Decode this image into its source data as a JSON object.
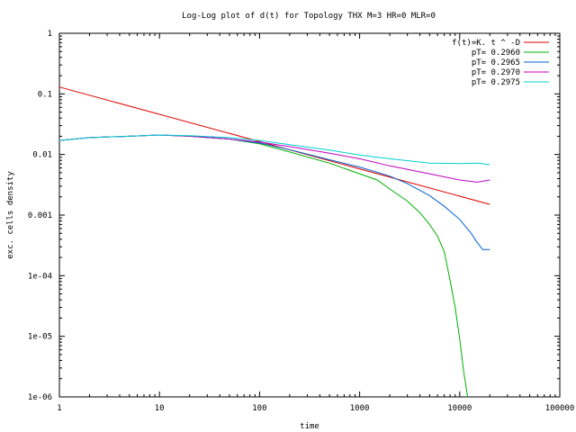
{
  "chart_data": {
    "type": "line",
    "title": "Log-Log plot of d(t) for Topology THX M=3 HR=0 MLR=0",
    "xlabel": "time",
    "ylabel": "exc. cells density",
    "x_scale": "log",
    "y_scale": "log",
    "xlim": [
      1,
      100000
    ],
    "ylim": [
      1e-06,
      1
    ],
    "x_ticks": [
      {
        "value": 1,
        "label": "1"
      },
      {
        "value": 10,
        "label": "10"
      },
      {
        "value": 100,
        "label": "100"
      },
      {
        "value": 1000,
        "label": "1000"
      },
      {
        "value": 10000,
        "label": "10000"
      },
      {
        "value": 100000,
        "label": "100000"
      }
    ],
    "y_ticks": [
      {
        "value": 1,
        "label": "1"
      },
      {
        "value": 0.1,
        "label": "0.1"
      },
      {
        "value": 0.01,
        "label": "0.01"
      },
      {
        "value": 0.001,
        "label": "0.001"
      },
      {
        "value": 0.0001,
        "label": "1e-04"
      },
      {
        "value": 1e-05,
        "label": "1e-05"
      },
      {
        "value": 1e-06,
        "label": "1e-06"
      }
    ],
    "grid": false,
    "legend_position": "top-right",
    "series": [
      {
        "name": "f(t)=K. t ^ -D",
        "color": "#e00000",
        "x": [
          1,
          20000
        ],
        "y": [
          0.13,
          0.0015
        ]
      },
      {
        "name": "pT= 0.2960",
        "color": "#00b000",
        "x": [
          1,
          2,
          5,
          10,
          20,
          50,
          100,
          200,
          500,
          1000,
          1500,
          2000,
          3000,
          4000,
          5000,
          6000,
          7000,
          8000,
          9000,
          10000,
          11000,
          12000
        ],
        "y": [
          0.017,
          0.019,
          0.02,
          0.021,
          0.02,
          0.018,
          0.015,
          0.011,
          0.0072,
          0.0048,
          0.0038,
          0.0027,
          0.0017,
          0.0011,
          0.0007,
          0.00045,
          0.00025,
          8.5e-05,
          3e-05,
          9e-06,
          2.5e-06,
          1e-06
        ]
      },
      {
        "name": "pT= 0.2965",
        "color": "#0060d0",
        "x": [
          1,
          2,
          5,
          10,
          20,
          50,
          100,
          200,
          500,
          1000,
          2000,
          3000,
          5000,
          7000,
          10000,
          13000,
          15000,
          17000,
          20000
        ],
        "y": [
          0.017,
          0.019,
          0.02,
          0.021,
          0.02,
          0.018,
          0.0155,
          0.012,
          0.0082,
          0.0062,
          0.0044,
          0.0033,
          0.0021,
          0.0014,
          0.00085,
          0.0005,
          0.00035,
          0.00027,
          0.00027
        ]
      },
      {
        "name": "pT= 0.2970",
        "color": "#c000c0",
        "x": [
          1,
          2,
          5,
          10,
          20,
          50,
          100,
          200,
          500,
          1000,
          2000,
          5000,
          10000,
          15000,
          20000
        ],
        "y": [
          0.017,
          0.019,
          0.02,
          0.021,
          0.02,
          0.018,
          0.016,
          0.0135,
          0.0105,
          0.0085,
          0.0065,
          0.0048,
          0.0038,
          0.0035,
          0.0038
        ]
      },
      {
        "name": "pT= 0.2975",
        "color": "#00d0d0",
        "x": [
          1,
          2,
          5,
          10,
          20,
          50,
          100,
          200,
          500,
          1000,
          2000,
          5000,
          10000,
          15000,
          20000
        ],
        "y": [
          0.017,
          0.019,
          0.02,
          0.021,
          0.0205,
          0.019,
          0.017,
          0.0145,
          0.0118,
          0.0098,
          0.0085,
          0.0072,
          0.0071,
          0.0072,
          0.0068
        ]
      }
    ]
  }
}
